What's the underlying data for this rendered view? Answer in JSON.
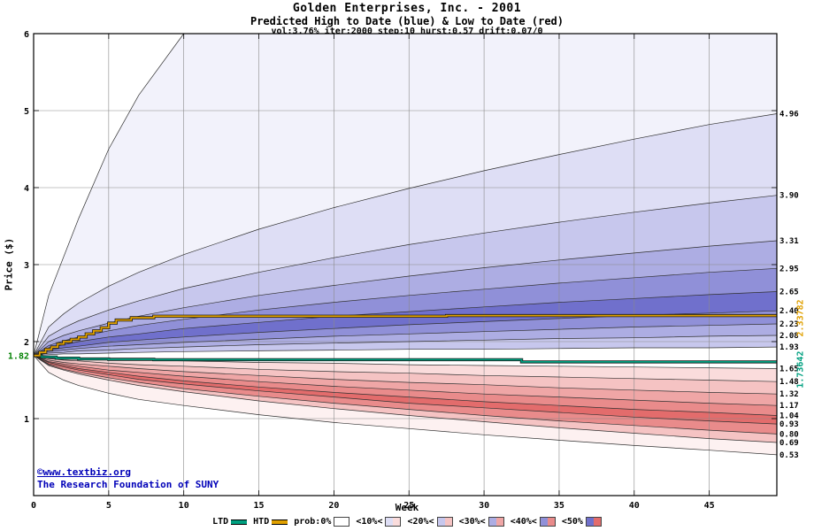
{
  "header": {
    "title": "Golden Enterprises, Inc. - 2001",
    "subtitle": "Predicted High to Date (blue) &  Low to Date (red)",
    "params": "vol:3.76% iter:2000 step:10 hurst:0.57 drift:0.07/0"
  },
  "footer": {
    "copyright": "©www.textbiz.org",
    "org": "The Research Foundation of SUNY"
  },
  "chart_data": {
    "type": "area",
    "title": "Golden Enterprises, Inc. - 2001",
    "xlabel": "Week",
    "ylabel": "Price ($)",
    "xlim": [
      0,
      49.5
    ],
    "ylim": [
      0,
      6
    ],
    "xticks": [
      0,
      5,
      10,
      15,
      20,
      25,
      30,
      35,
      40,
      45
    ],
    "yticks": [
      1,
      2,
      3,
      4,
      5,
      6
    ],
    "grid": true,
    "start_price": 1.82,
    "start_price_label": "1.82",
    "colors": {
      "start_label": "#008000",
      "grid": "#8a8a8a",
      "boundary_line": "#303030",
      "border": "#000000"
    },
    "weeks": [
      0,
      1,
      2,
      3,
      5,
      7,
      10,
      15,
      20,
      25,
      30,
      35,
      40,
      45,
      49.5
    ],
    "high_envelope": [
      1.82,
      2.6,
      3.1,
      3.6,
      4.5,
      5.2,
      6.0,
      6.0,
      6.0,
      6.0,
      6.0,
      6.0,
      6.0,
      6.0,
      6.0
    ],
    "high_boundaries": [
      {
        "label": "4.96",
        "values": [
          1.82,
          2.19,
          2.36,
          2.5,
          2.72,
          2.9,
          3.13,
          3.46,
          3.74,
          3.99,
          4.22,
          4.43,
          4.63,
          4.82,
          4.96
        ]
      },
      {
        "label": "3.90",
        "values": [
          1.82,
          2.07,
          2.18,
          2.27,
          2.41,
          2.53,
          2.69,
          2.9,
          3.09,
          3.26,
          3.41,
          3.55,
          3.68,
          3.8,
          3.9
        ]
      },
      {
        "label": "3.31",
        "values": [
          1.82,
          2.0,
          2.08,
          2.14,
          2.24,
          2.33,
          2.44,
          2.6,
          2.73,
          2.85,
          2.96,
          3.06,
          3.15,
          3.24,
          3.31
        ]
      },
      {
        "label": "2.95",
        "values": [
          1.82,
          1.95,
          2.01,
          2.06,
          2.14,
          2.21,
          2.29,
          2.41,
          2.51,
          2.6,
          2.68,
          2.76,
          2.83,
          2.9,
          2.95
        ]
      },
      {
        "label": "2.65",
        "values": [
          1.82,
          1.92,
          1.96,
          2.0,
          2.06,
          2.1,
          2.17,
          2.25,
          2.33,
          2.39,
          2.45,
          2.51,
          2.56,
          2.61,
          2.65
        ]
      },
      {
        "label": "2.40",
        "values": [
          1.82,
          1.89,
          1.92,
          1.94,
          1.99,
          2.02,
          2.06,
          2.12,
          2.17,
          2.22,
          2.26,
          2.3,
          2.34,
          2.37,
          2.4
        ]
      },
      {
        "label": "2.23",
        "values": [
          1.82,
          1.87,
          1.89,
          1.91,
          1.94,
          1.96,
          1.99,
          2.03,
          2.07,
          2.1,
          2.13,
          2.16,
          2.19,
          2.21,
          2.23
        ]
      },
      {
        "label": "2.08",
        "values": [
          1.82,
          1.85,
          1.86,
          1.88,
          1.89,
          1.91,
          1.93,
          1.96,
          1.98,
          2.0,
          2.02,
          2.04,
          2.05,
          2.07,
          2.08
        ]
      },
      {
        "label": "1.93",
        "values": [
          1.82,
          1.83,
          1.84,
          1.84,
          1.85,
          1.86,
          1.87,
          1.88,
          1.89,
          1.9,
          1.9,
          1.91,
          1.92,
          1.92,
          1.93
        ]
      }
    ],
    "low_boundaries": [
      {
        "label": "1.65",
        "values": [
          1.82,
          1.8,
          1.79,
          1.78,
          1.77,
          1.76,
          1.75,
          1.73,
          1.72,
          1.7,
          1.69,
          1.68,
          1.67,
          1.66,
          1.65
        ]
      },
      {
        "label": "1.48",
        "values": [
          1.82,
          1.78,
          1.76,
          1.75,
          1.72,
          1.7,
          1.68,
          1.64,
          1.61,
          1.59,
          1.56,
          1.54,
          1.52,
          1.5,
          1.48
        ]
      },
      {
        "label": "1.32",
        "values": [
          1.82,
          1.76,
          1.73,
          1.71,
          1.68,
          1.65,
          1.61,
          1.56,
          1.51,
          1.47,
          1.44,
          1.4,
          1.37,
          1.34,
          1.32
        ]
      },
      {
        "label": "1.17",
        "values": [
          1.82,
          1.74,
          1.71,
          1.68,
          1.63,
          1.6,
          1.55,
          1.48,
          1.42,
          1.37,
          1.32,
          1.28,
          1.24,
          1.2,
          1.17
        ]
      },
      {
        "label": "1.04",
        "values": [
          1.82,
          1.73,
          1.69,
          1.65,
          1.6,
          1.55,
          1.49,
          1.41,
          1.34,
          1.28,
          1.22,
          1.17,
          1.12,
          1.08,
          1.04
        ]
      },
      {
        "label": "0.93",
        "values": [
          1.82,
          1.71,
          1.67,
          1.63,
          1.57,
          1.51,
          1.45,
          1.36,
          1.28,
          1.2,
          1.14,
          1.08,
          1.02,
          0.97,
          0.93
        ]
      },
      {
        "label": "0.80",
        "values": [
          1.82,
          1.7,
          1.64,
          1.6,
          1.53,
          1.47,
          1.39,
          1.29,
          1.2,
          1.12,
          1.04,
          0.97,
          0.91,
          0.85,
          0.8
        ]
      },
      {
        "label": "0.69",
        "values": [
          1.82,
          1.69,
          1.63,
          1.58,
          1.5,
          1.43,
          1.35,
          1.23,
          1.13,
          1.04,
          0.96,
          0.88,
          0.81,
          0.74,
          0.69
        ]
      },
      {
        "label": "0.53",
        "values": [
          1.82,
          1.6,
          1.5,
          1.43,
          1.33,
          1.25,
          1.17,
          1.05,
          0.95,
          0.87,
          0.79,
          0.72,
          0.65,
          0.59,
          0.53
        ]
      }
    ],
    "band_colors": {
      "blue": [
        "#f2f2fb",
        "#dedef5",
        "#c7c7ed",
        "#adade3",
        "#9090d8",
        "#7070cc"
      ],
      "red": [
        "#fdf1f1",
        "#fadcdc",
        "#f5c3c3",
        "#efa6a6",
        "#e98b8b",
        "#e36c6c"
      ]
    },
    "blue_band_levels": [
      0,
      1,
      2,
      3,
      4,
      5,
      4,
      3,
      2
    ],
    "red_band_levels": [
      1,
      2,
      3,
      4,
      5,
      4,
      2,
      0
    ],
    "htd_line": {
      "name": "HTD",
      "label": "2.33782",
      "color": "#e0a000",
      "points": [
        [
          0,
          1.82
        ],
        [
          0.4,
          1.86
        ],
        [
          0.8,
          1.9
        ],
        [
          1.2,
          1.93
        ],
        [
          1.6,
          1.97
        ],
        [
          2,
          2.0
        ],
        [
          2.5,
          2.03
        ],
        [
          3,
          2.06
        ],
        [
          3.5,
          2.1
        ],
        [
          4,
          2.14
        ],
        [
          4.5,
          2.18
        ],
        [
          5,
          2.24
        ],
        [
          5.5,
          2.28
        ],
        [
          6.5,
          2.31
        ],
        [
          8,
          2.33
        ],
        [
          26.5,
          2.33
        ],
        [
          27.5,
          2.3378
        ],
        [
          49.5,
          2.3378
        ]
      ]
    },
    "ltd_line": {
      "name": "LTD",
      "label": "1.73642",
      "color": "#00a080",
      "points": [
        [
          0,
          1.82
        ],
        [
          0.5,
          1.8
        ],
        [
          1.5,
          1.785
        ],
        [
          3,
          1.775
        ],
        [
          5,
          1.77
        ],
        [
          8,
          1.765
        ],
        [
          31.5,
          1.765
        ],
        [
          32.5,
          1.73642
        ],
        [
          49.5,
          1.73642
        ]
      ]
    }
  },
  "legend": {
    "items": [
      {
        "label": "LTD",
        "type": "line",
        "color": "#00a080"
      },
      {
        "label": "HTD",
        "type": "line",
        "color": "#e0a000"
      },
      {
        "label": "prob:0%",
        "type": "box",
        "left": "#ffffff",
        "right": "#ffffff"
      },
      {
        "label": "<10%<",
        "type": "box",
        "left": "#dedef5",
        "right": "#fadcdc"
      },
      {
        "label": "<20%<",
        "type": "box",
        "left": "#c7c7ed",
        "right": "#f5c3c3"
      },
      {
        "label": "<30%<",
        "type": "box",
        "left": "#adade3",
        "right": "#efa6a6"
      },
      {
        "label": "<40%<",
        "type": "box",
        "left": "#9090d8",
        "right": "#e98b8b"
      },
      {
        "label": "<50%",
        "type": "box",
        "left": "#7070cc",
        "right": "#e36c6c"
      }
    ]
  }
}
